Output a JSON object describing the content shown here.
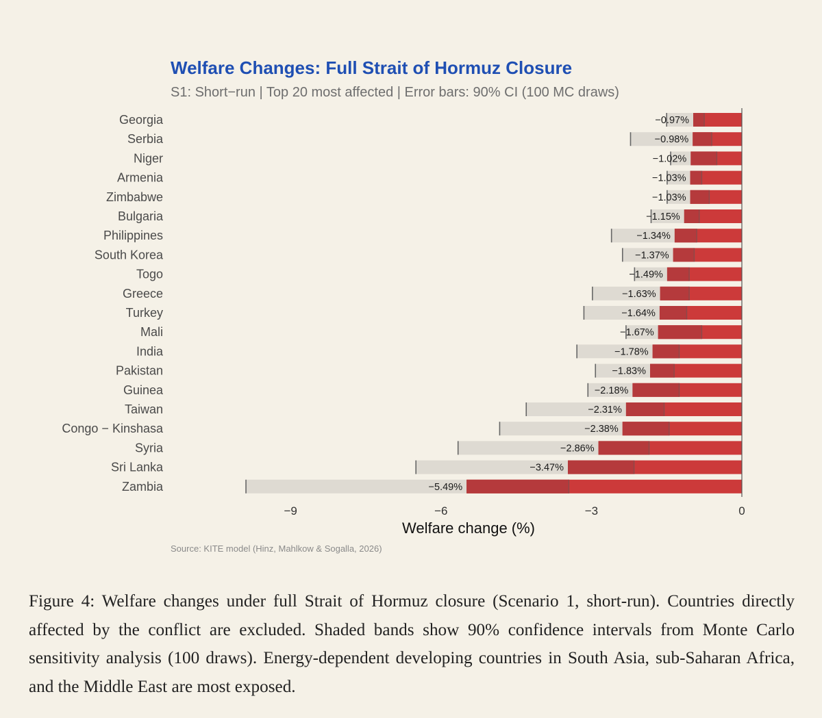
{
  "chart_data": {
    "type": "bar",
    "orientation": "horizontal",
    "title": "Welfare Changes: Full Strait of Hormuz Closure",
    "subtitle": "S1: Short−run | Top 20 most affected | Error bars: 90% CI (100 MC draws)",
    "xlabel": "Welfare change (%)",
    "ylabel": "",
    "xlim": [
      -10.0,
      0
    ],
    "xticks": [
      -9,
      -6,
      -3,
      0
    ],
    "xtick_labels": [
      "−9",
      "−6",
      "−3",
      "0"
    ],
    "categories": [
      "Georgia",
      "Serbia",
      "Niger",
      "Armenia",
      "Zimbabwe",
      "Bulgaria",
      "Philippines",
      "South Korea",
      "Togo",
      "Greece",
      "Turkey",
      "Mali",
      "India",
      "Pakistan",
      "Guinea",
      "Taiwan",
      "Congo − Kinshasa",
      "Syria",
      "Sri Lanka",
      "Zambia"
    ],
    "values": [
      -0.97,
      -0.98,
      -1.02,
      -1.03,
      -1.03,
      -1.15,
      -1.34,
      -1.37,
      -1.49,
      -1.63,
      -1.64,
      -1.67,
      -1.78,
      -1.83,
      -2.18,
      -2.31,
      -2.38,
      -2.86,
      -3.47,
      -5.49
    ],
    "value_labels": [
      "−0.97%",
      "−0.98%",
      "−1.02%",
      "−1.03%",
      "−1.03%",
      "−1.15%",
      "−1.34%",
      "−1.37%",
      "−1.49%",
      "−1.63%",
      "−1.64%",
      "−1.67%",
      "−1.78%",
      "−1.83%",
      "−2.18%",
      "−2.31%",
      "−2.38%",
      "−2.86%",
      "−3.47%",
      "−5.49%"
    ],
    "ci_lower": [
      -1.5,
      -2.22,
      -1.42,
      -1.49,
      -1.49,
      -1.81,
      -2.6,
      -2.38,
      -2.14,
      -2.98,
      -3.15,
      -2.31,
      -3.29,
      -2.92,
      -3.07,
      -4.3,
      -4.83,
      -5.66,
      -6.5,
      -9.89
    ],
    "ci_upper": [
      -0.75,
      -0.6,
      -0.5,
      -0.8,
      -0.65,
      -0.85,
      -0.9,
      -0.95,
      -1.05,
      -1.05,
      -1.1,
      -0.8,
      -1.25,
      -1.35,
      -1.25,
      -1.55,
      -1.45,
      -1.85,
      -2.15,
      -3.45
    ],
    "bar_color": "#cc3a3a",
    "ci_band_color": "#dedad2",
    "ci_overlap_color": "#b53a3c",
    "title_color": "#1f4fb3",
    "background": "#f5f1e7",
    "source": "Source: KITE model (Hinz, Mahlkow & Sogalla, 2026)"
  },
  "caption": "Figure 4: Welfare changes under full Strait of Hormuz closure (Scenario 1, short-run). Countries directly affected by the conflict are excluded. Shaded bands show 90% confidence intervals from Monte Carlo sensitivity analysis (100 draws). Energy-dependent developing countries in South Asia, sub-Saharan Africa, and the Middle East are most exposed."
}
